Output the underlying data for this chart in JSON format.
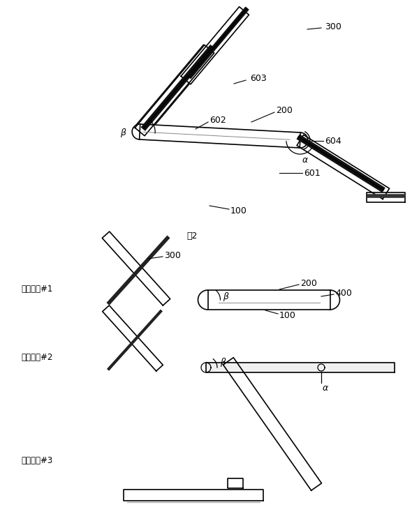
{
  "bg_color": "#ffffff",
  "line_color": "#000000",
  "lw": 1.2,
  "fig2_label": "图2",
  "state_labels": [
    "支架状态#1",
    "支架状态#2",
    "支架状态#3"
  ]
}
